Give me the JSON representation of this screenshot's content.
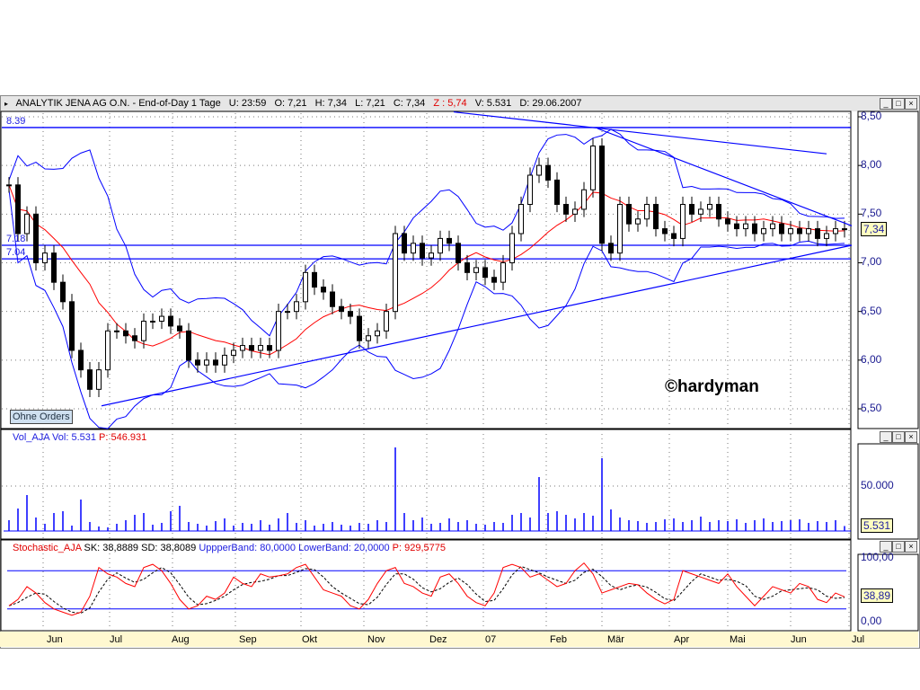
{
  "header": {
    "title": "ANALYTIK JENA AG O.N. - End-of-Day 1 Tage",
    "u": "U: 23:59",
    "o": "O: 7,21",
    "h": "H: 7,34",
    "l": "L: 7,21",
    "c": "C: 7,34",
    "z": "Z : 5,74",
    "v": "V: 5.531",
    "d": "D: 29.06.2007"
  },
  "volume_header": {
    "name": "Vol_AJA",
    "vol": "Vol: 5.531",
    "p": "P: 546.931"
  },
  "stoch_header": {
    "name": "Stochastic_AJA",
    "sk": "SK: 38,8889",
    "sd": "SD: 38,8089",
    "upper": "UppperBand: 80,0000",
    "lower": "LowerBand: 20,0000",
    "p": "P: 929,5775"
  },
  "buttons": {
    "ohne_orders": "Ohne Orders",
    "minimize": "_",
    "maximize": "□",
    "close": "×"
  },
  "copyright": "©hardyman",
  "colors": {
    "price": "#000000",
    "ma": "#ff0000",
    "bands": "#0000ff",
    "volume": "#0000ff",
    "stoch_k": "#ff0000",
    "stoch_d": "#000000",
    "accent_value_box": "#ffffc0"
  },
  "chart_data": [
    {
      "type": "candlestick",
      "title": "ANALYTIK JENA AG O.N.",
      "ylim": [
        5.3,
        8.6
      ],
      "yticks": [
        "8,50",
        "8,00",
        "7,50",
        "7,00",
        "6,50",
        "6,00",
        "5,50"
      ],
      "ytick_values": [
        8.5,
        8,
        7.5,
        7,
        6.5,
        6,
        5.5
      ],
      "xticks": [
        "Jun",
        "Jul",
        "Aug",
        "Sep",
        "Okt",
        "Nov",
        "Dez",
        "07",
        "Feb",
        "Mär",
        "Apr",
        "Mai",
        "Jun",
        "Jul"
      ],
      "last_value": "7,34",
      "hlines": [
        {
          "value": 8.39,
          "label": "8.39"
        },
        {
          "value": 7.18,
          "label": "7.18"
        },
        {
          "value": 7.04,
          "label": "7.04"
        }
      ],
      "trendlines": [
        [
          [
            10.3,
            5.53
          ],
          [
            93.8,
            7.18
          ]
        ],
        [
          [
            49.5,
            8.55
          ],
          [
            91,
            8.12
          ]
        ],
        [
          [
            65.5,
            8.38
          ],
          [
            93.8,
            7.38
          ]
        ]
      ],
      "close": [
        7.8,
        7.3,
        7.5,
        7.0,
        7.1,
        6.8,
        6.6,
        6.1,
        5.9,
        5.7,
        5.9,
        6.3,
        6.3,
        6.25,
        6.2,
        6.4,
        6.4,
        6.45,
        6.35,
        6.3,
        6.0,
        5.95,
        6.0,
        5.95,
        6.05,
        6.1,
        6.15,
        6.1,
        6.15,
        6.1,
        6.5,
        6.5,
        6.6,
        6.9,
        6.75,
        6.7,
        6.55,
        6.5,
        6.45,
        6.2,
        6.25,
        6.3,
        6.5,
        7.3,
        7.1,
        7.2,
        7.05,
        7.1,
        7.25,
        7.2,
        7.0,
        6.9,
        6.95,
        6.85,
        6.8,
        7.0,
        7.3,
        7.6,
        7.9,
        8.0,
        7.85,
        7.6,
        7.5,
        7.55,
        7.75,
        8.2,
        7.2,
        7.1,
        7.6,
        7.4,
        7.45,
        7.6,
        7.35,
        7.3,
        7.25,
        7.6,
        7.5,
        7.55,
        7.6,
        7.45,
        7.4,
        7.35,
        7.4,
        7.3,
        7.35,
        7.4,
        7.3,
        7.35,
        7.3,
        7.35,
        7.25,
        7.3,
        7.35,
        7.34
      ]
    },
    {
      "type": "bar",
      "title": "Vol_AJA",
      "ylim": [
        0,
        100000
      ],
      "yticks": [
        "50.000"
      ],
      "ytick_values": [
        50000
      ],
      "last_value": "5.531",
      "values": [
        12000,
        25000,
        40000,
        15000,
        8000,
        20000,
        22000,
        6000,
        35000,
        10000,
        5000,
        4000,
        8000,
        12000,
        18000,
        20000,
        7000,
        9000,
        22000,
        28000,
        10000,
        8000,
        6000,
        11000,
        14000,
        6000,
        9000,
        8000,
        12000,
        7000,
        14000,
        20000,
        9000,
        12000,
        6000,
        8000,
        10000,
        7000,
        6000,
        9000,
        8000,
        12000,
        10000,
        93000,
        20000,
        12000,
        15000,
        8000,
        9000,
        14000,
        10000,
        12000,
        8000,
        7000,
        10000,
        9000,
        18000,
        20000,
        15000,
        60000,
        20000,
        22000,
        18000,
        14000,
        20000,
        17000,
        81000,
        24000,
        15000,
        12000,
        11000,
        9000,
        10000,
        13000,
        14000,
        10000,
        12000,
        16000,
        10000,
        12000,
        11000,
        13000,
        9000,
        12000,
        14000,
        10000,
        11000,
        12000,
        13000,
        9000,
        11000,
        10000,
        12000,
        5531
      ]
    },
    {
      "type": "line",
      "title": "Stochastic_AJA",
      "ylim": [
        0,
        100
      ],
      "yticks": [
        "100,00",
        "0,00"
      ],
      "ytick_values": [
        100,
        0
      ],
      "last_value": "38,89",
      "bands": [
        80,
        20
      ],
      "sk": [
        25,
        35,
        55,
        45,
        30,
        20,
        15,
        10,
        15,
        40,
        85,
        75,
        70,
        60,
        55,
        85,
        90,
        80,
        60,
        35,
        20,
        25,
        40,
        35,
        45,
        70,
        60,
        55,
        75,
        70,
        72,
        75,
        85,
        90,
        70,
        50,
        45,
        40,
        25,
        20,
        35,
        60,
        80,
        85,
        60,
        55,
        45,
        40,
        70,
        75,
        60,
        40,
        30,
        25,
        45,
        85,
        90,
        85,
        70,
        75,
        65,
        55,
        60,
        80,
        92,
        75,
        45,
        50,
        55,
        60,
        58,
        45,
        35,
        28,
        35,
        80,
        75,
        70,
        65,
        60,
        75,
        55,
        40,
        25,
        40,
        55,
        50,
        45,
        60,
        55,
        35,
        30,
        45,
        39
      ]
    }
  ]
}
